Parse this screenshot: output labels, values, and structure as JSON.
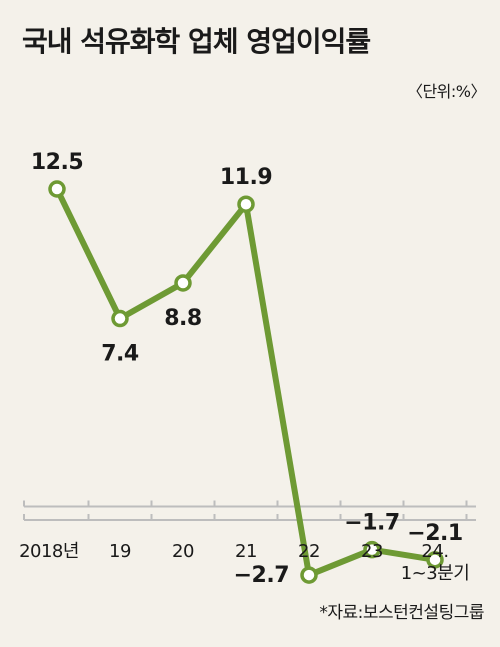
{
  "title": "국내 석유화학 업체 영업이익률",
  "unit": "〈단위:%〉",
  "source": "*자료:보스턴컨설팅그룹",
  "colors": {
    "line": "#6e9a34",
    "marker_fill": "#ffffff",
    "axis": "#bdbdbd",
    "background": "#f4f1ea"
  },
  "chart_data": {
    "type": "line",
    "title": "국내 석유화학 업체 영업이익률",
    "xlabel": "",
    "ylabel": "",
    "unit": "%",
    "categories": [
      "2018년",
      "19",
      "20",
      "21",
      "22",
      "23",
      "24.|1~3분기"
    ],
    "series": [
      {
        "values": [
          12.5,
          7.4,
          8.8,
          11.9,
          -2.7,
          -1.7,
          -2.1
        ]
      }
    ],
    "value_labels": [
      "12.5",
      "7.4",
      "8.8",
      "11.9",
      "−2.7",
      "−1.7",
      "−2.1"
    ],
    "ylim": [
      -5,
      15
    ],
    "grid": false,
    "legend": "none"
  }
}
